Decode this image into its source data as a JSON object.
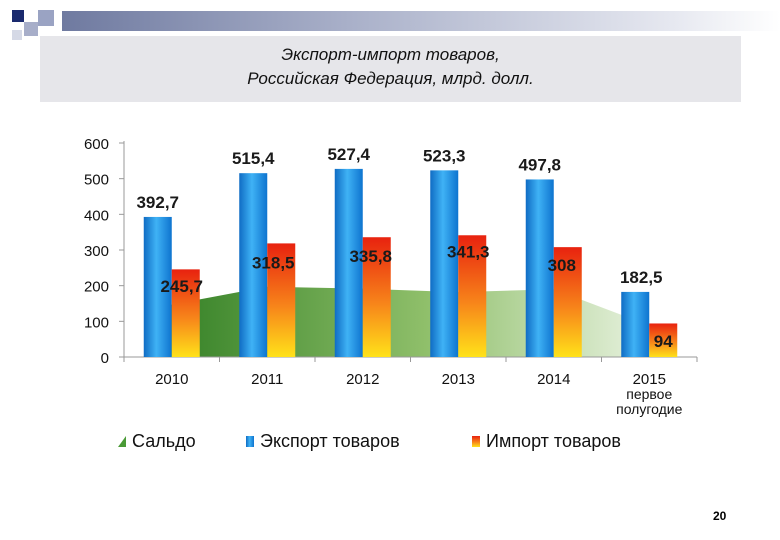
{
  "title": {
    "line1": "Экспорт-импорт товаров,",
    "line2": "Российская Федерация, млрд. долл."
  },
  "page_number": "20",
  "chart_data": {
    "type": "bar",
    "categories": [
      "2010",
      "2011",
      "2012",
      "2013",
      "2014",
      "2015\nпервое\nполугодие"
    ],
    "ylim": [
      0,
      600
    ],
    "yticks": [
      0,
      100,
      200,
      300,
      400,
      500,
      600
    ],
    "grid": false,
    "legend_position": "bottom",
    "series": [
      {
        "name": "Сальдо",
        "type": "area",
        "values": [
          147,
          197,
          191.6,
          182,
          189.8,
          88.5
        ],
        "color": "#4a9a36"
      },
      {
        "name": "Экспорт товаров",
        "type": "bar",
        "values": [
          392.7,
          515.4,
          527.4,
          523.3,
          497.8,
          182.5
        ],
        "labels": [
          "392,7",
          "515,4",
          "527,4",
          "523,3",
          "497,8",
          "182,5"
        ],
        "color": "#1e8fe0"
      },
      {
        "name": "Импорт товаров",
        "type": "bar",
        "values": [
          245.7,
          318.5,
          335.8,
          341.3,
          308,
          94
        ],
        "labels": [
          "245,7",
          "318,5",
          "335,8",
          "341,3",
          "308",
          "94"
        ],
        "color": "#f04a10"
      }
    ]
  }
}
